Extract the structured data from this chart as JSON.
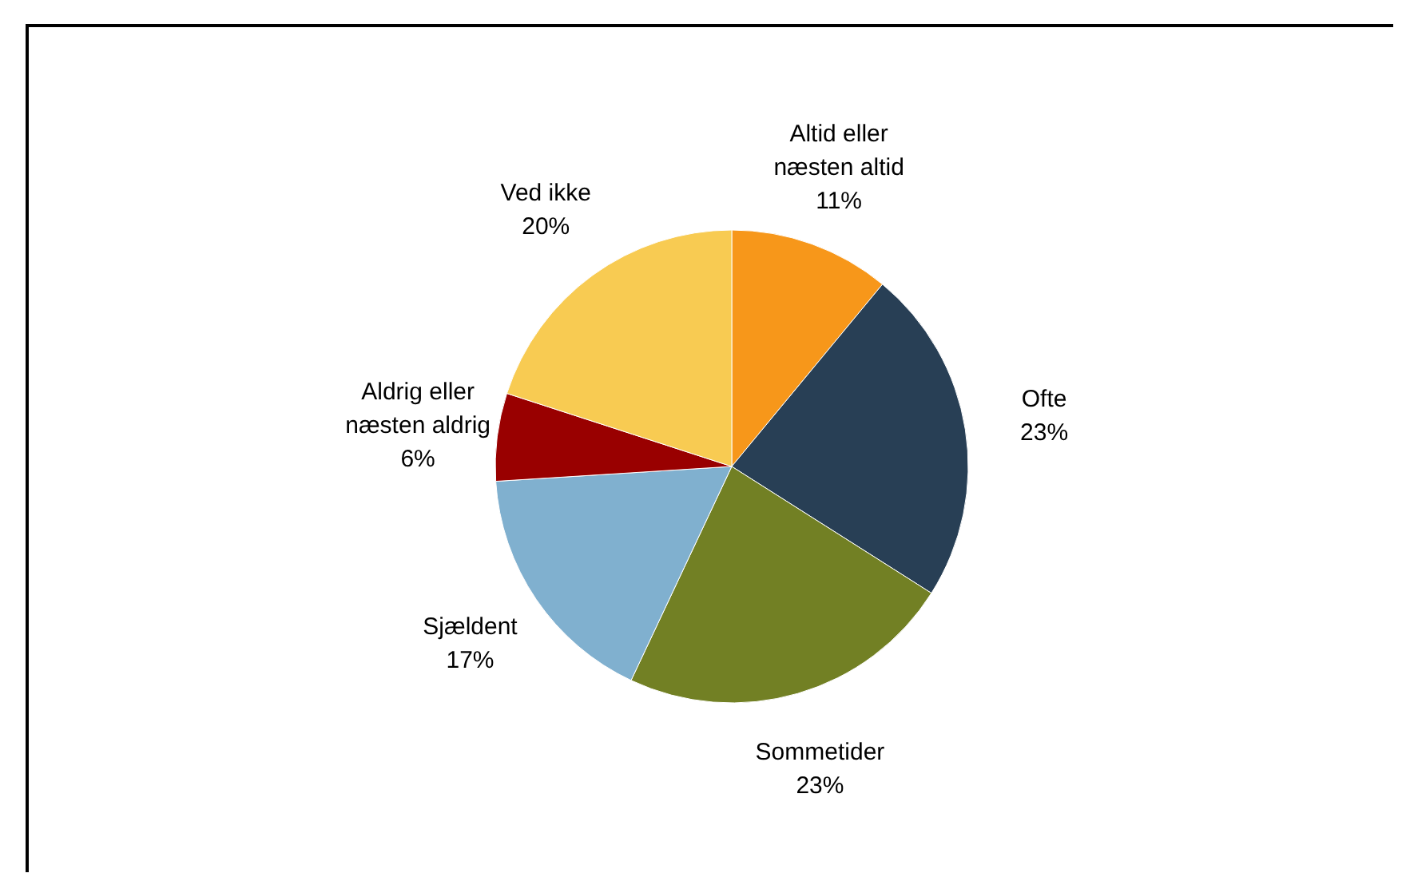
{
  "chart_data": {
    "type": "pie",
    "categories": [
      "Altid eller næsten altid",
      "Ofte",
      "Sommetider",
      "Sjældent",
      "Aldrig eller næsten aldrig",
      "Ved ikke"
    ],
    "values": [
      11,
      23,
      23,
      17,
      6,
      20
    ],
    "colors": [
      "#f7971a",
      "#283f55",
      "#728024",
      "#80b0cf",
      "#990000",
      "#f8cb52"
    ],
    "value_labels": [
      "11%",
      "23%",
      "23%",
      "17%",
      "6%",
      "20%"
    ]
  }
}
